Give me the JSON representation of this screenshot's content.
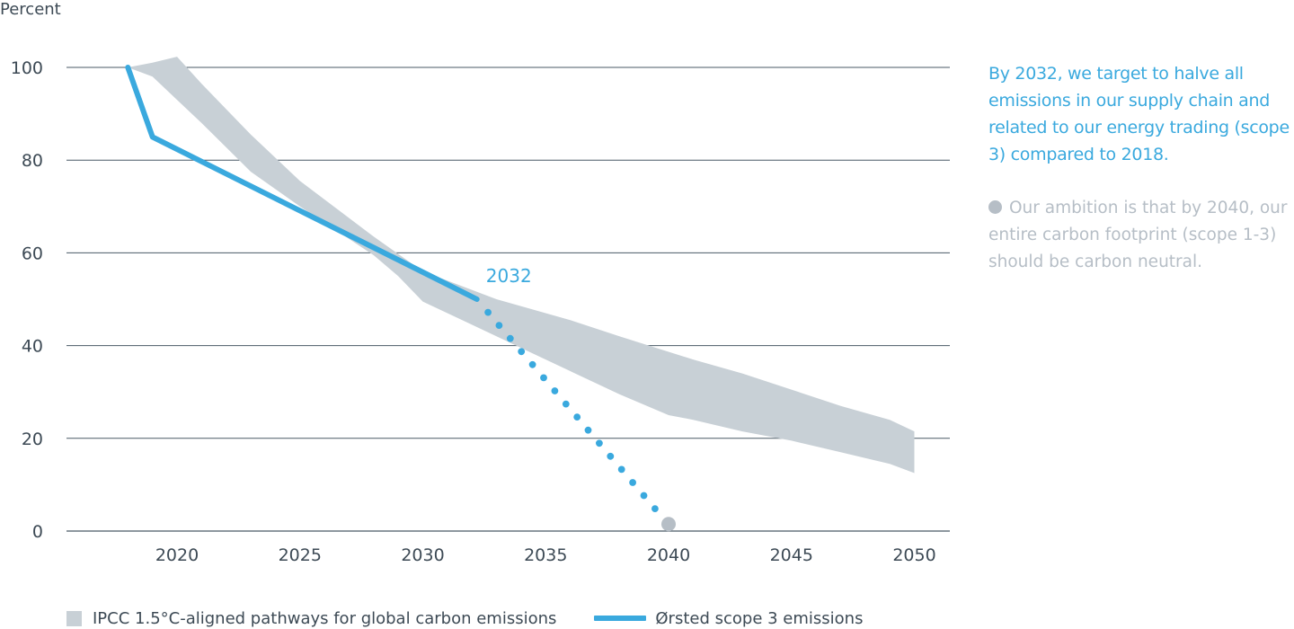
{
  "chart_data": {
    "type": "line",
    "ylabel": "Percent",
    "xlim": [
      2015,
      2051
    ],
    "ylim": [
      0,
      100
    ],
    "y_ticks": [
      0,
      20,
      40,
      60,
      80,
      100
    ],
    "x_ticks": [
      2020,
      2025,
      2030,
      2035,
      2040,
      2045,
      2050
    ],
    "grid": "horizontal",
    "series": [
      {
        "name": "IPCC 1.5°C-aligned pathways for global carbon emissions",
        "type": "area",
        "color": "#c8d0d6",
        "upper": [
          [
            2018,
            100
          ],
          [
            2019,
            101
          ],
          [
            2020,
            102.3
          ],
          [
            2021,
            96.5
          ],
          [
            2023,
            85.5
          ],
          [
            2025,
            75.5
          ],
          [
            2028,
            63.5
          ],
          [
            2030,
            56
          ],
          [
            2033,
            50
          ],
          [
            2036,
            45.5
          ],
          [
            2038,
            42
          ],
          [
            2041,
            37
          ],
          [
            2043,
            34
          ],
          [
            2045,
            30.5
          ],
          [
            2047,
            27
          ],
          [
            2049,
            24
          ],
          [
            2050,
            21.5
          ]
        ],
        "lower": [
          [
            2050,
            12.5
          ],
          [
            2049,
            14.5
          ],
          [
            2047,
            17
          ],
          [
            2045,
            19.5
          ],
          [
            2043,
            21.5
          ],
          [
            2041,
            24
          ],
          [
            2040,
            25
          ],
          [
            2038,
            29.5
          ],
          [
            2036,
            34.5
          ],
          [
            2034,
            39.5
          ],
          [
            2032,
            44.5
          ],
          [
            2030,
            49.5
          ],
          [
            2029,
            55
          ],
          [
            2028,
            59.5
          ],
          [
            2026,
            66.5
          ],
          [
            2025,
            70
          ],
          [
            2023,
            77.5
          ],
          [
            2021,
            88
          ],
          [
            2020,
            93
          ],
          [
            2019,
            98
          ],
          [
            2018,
            100
          ]
        ]
      },
      {
        "name": "Ørsted scope 3 emissions",
        "type": "line",
        "color": "#3aa9de",
        "points": [
          [
            2018,
            100
          ],
          [
            2019,
            85
          ],
          [
            2032.2,
            50
          ]
        ]
      },
      {
        "name": "target-path",
        "type": "dotted",
        "color": "#3aa9de",
        "points": [
          [
            2032.2,
            50
          ],
          [
            2039.9,
            2
          ]
        ]
      },
      {
        "name": "ambition-marker",
        "type": "point",
        "color": "#b6bec6",
        "points": [
          [
            2040,
            1.5
          ]
        ]
      }
    ],
    "annotations": [
      {
        "text": "2032",
        "x": 2033.5,
        "y": 55
      }
    ],
    "legend": {
      "placement": "bottom-left",
      "items": [
        {
          "label": "IPCC 1.5°C-aligned pathways for global carbon emissions",
          "swatch": "area",
          "color": "#c8d0d6"
        },
        {
          "label": "Ørsted scope 3 emissions",
          "swatch": "line",
          "color": "#3aa9de"
        }
      ]
    }
  },
  "side": {
    "target": "By 2032, we target to halve all emissions in our supply chain and related to our energy trading (scope 3) compared to 2018.",
    "ambition": "Our ambition is that by 2040, our entire carbon footprint (scope 1-3) should be carbon neutral."
  },
  "colors": {
    "accent": "#3aa9de",
    "band": "#c8d0d6",
    "muted": "#b6bec6",
    "grid": "#4a5a66",
    "text": "#3d4a55"
  }
}
